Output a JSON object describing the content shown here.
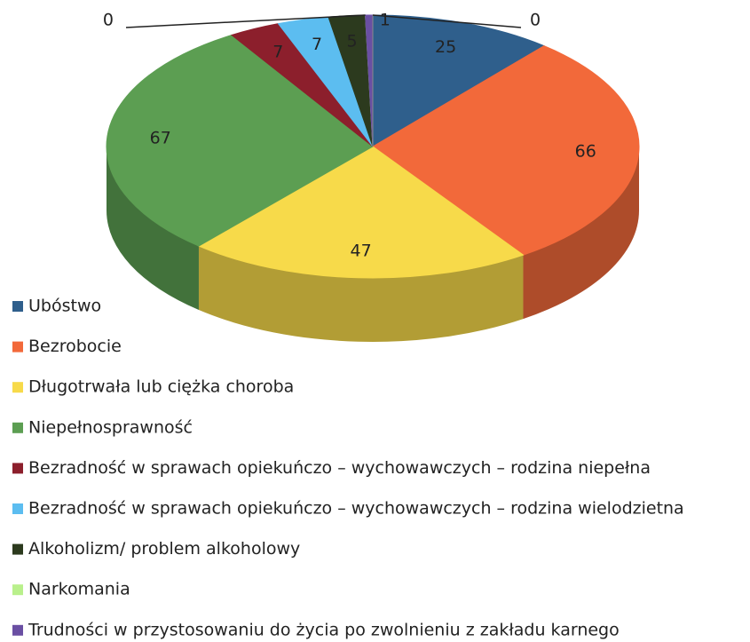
{
  "chart_data": {
    "type": "pie3d",
    "categories": [
      "Ubóstwo",
      "Bezrobocie",
      "Długotrwała lub ciężka choroba",
      "Niepełnosprawność",
      "Bezradność w sprawach opiekuńczo – wychowawczych – rodzina niepełna",
      "Bezradność w sprawach opiekuńczo – wychowawczych – rodzina wielodzietna",
      "Alkoholizm/ problem alkoholowy",
      "Narkomania",
      "Trudności w przystosowaniu do życia po zwolnieniu z zakładu karnego",
      null
    ],
    "values": [
      25,
      66,
      47,
      67,
      7,
      7,
      5,
      0,
      1,
      0
    ],
    "colors": [
      "#2f5f8c",
      "#f2693a",
      "#f7da4a",
      "#5c9e52",
      "#8c1f2c",
      "#5cbdf0",
      "#2c3a1e",
      "#b9f08c",
      "#6a4fa3",
      "#8a8a8a"
    ],
    "legend": "bottom-left"
  }
}
